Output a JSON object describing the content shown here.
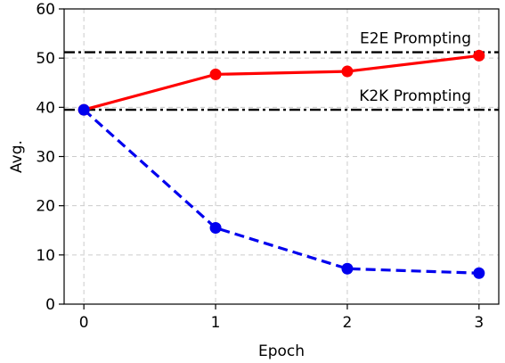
{
  "chart_data": {
    "type": "line",
    "xlabel": "Epoch",
    "ylabel": "Avg.",
    "xlim": [
      -0.15,
      3.15
    ],
    "ylim": [
      0,
      60
    ],
    "xticks": [
      0,
      1,
      2,
      3
    ],
    "yticks": [
      0,
      10,
      20,
      30,
      40,
      50,
      60
    ],
    "grid": true,
    "series": [
      {
        "color": "#ff0000",
        "line_style": "solid",
        "marker": "circle",
        "x": [
          0,
          1,
          2,
          3
        ],
        "y": [
          39.5,
          46.7,
          47.3,
          50.5
        ]
      },
      {
        "color": "#0000ee",
        "line_style": "dashed",
        "marker": "circle",
        "x": [
          0,
          1,
          2,
          3
        ],
        "y": [
          39.5,
          15.5,
          7.2,
          6.3
        ]
      }
    ],
    "reference_lines": [
      {
        "label": "E2E Prompting",
        "y": 51.2,
        "color": "#000000",
        "line_style": "dash-dot"
      },
      {
        "label": "K2K Prompting",
        "y": 39.5,
        "color": "#000000",
        "line_style": "dash-dot"
      }
    ]
  }
}
